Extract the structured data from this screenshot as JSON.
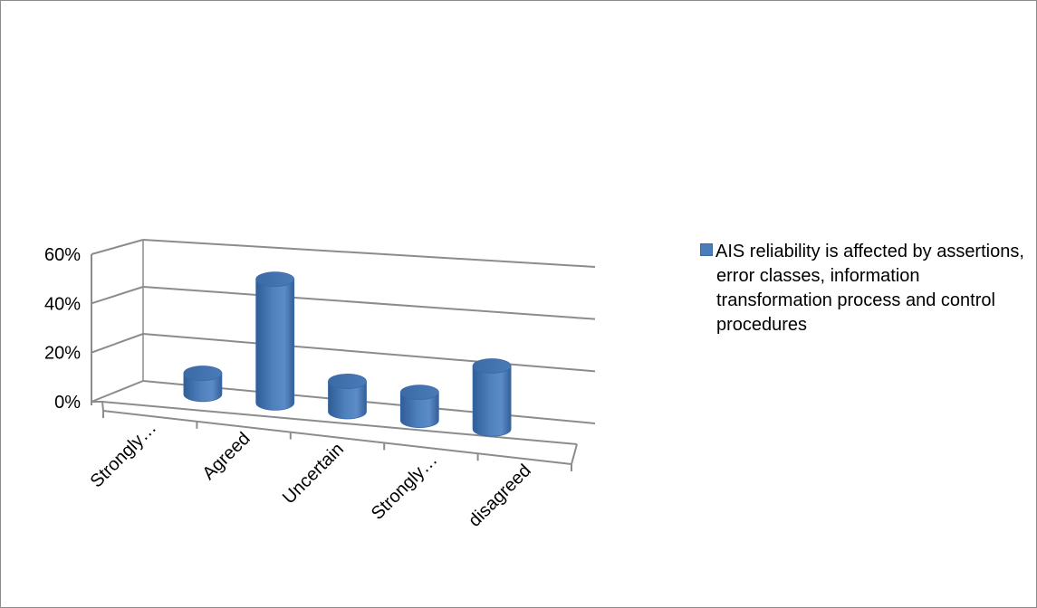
{
  "chart_data": {
    "type": "bar",
    "style": "3d-cylinder",
    "categories": [
      "Strongly…",
      "Agreed",
      "Uncertain",
      "Strongly…",
      "disagreed"
    ],
    "series": [
      {
        "name": "AIS reliability is affected by assertions, error classes, information transformation process and control procedures",
        "values": [
          0.09,
          0.53,
          0.13,
          0.12,
          0.27
        ]
      }
    ],
    "yticks": [
      "0%",
      "20%",
      "40%",
      "60%"
    ],
    "ylim": [
      0,
      0.6
    ],
    "grid": true,
    "legend_position": "right",
    "colors": {
      "bar": "#4f81bd",
      "grid": "#8c8c8c"
    }
  }
}
